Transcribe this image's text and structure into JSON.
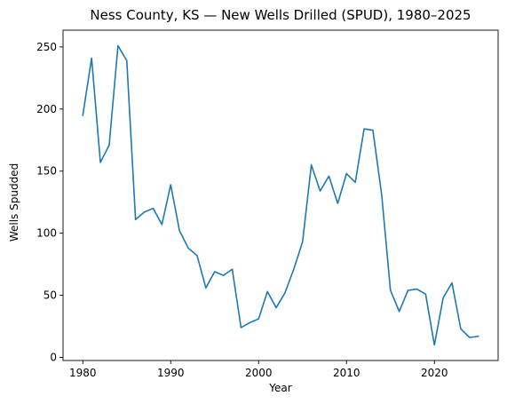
{
  "chart_data": {
    "type": "line",
    "title": "Ness County, KS — New Wells Drilled (SPUD), 1980–2025",
    "xlabel": "Year",
    "ylabel": "Wells Spudded",
    "xlim": [
      1977.75,
      2027.25
    ],
    "ylim": [
      -2.5,
      263.5
    ],
    "xticks": [
      1980,
      1990,
      2000,
      2010,
      2020
    ],
    "yticks": [
      0,
      50,
      100,
      150,
      200,
      250
    ],
    "grid": false,
    "line_color": "#1f77b4",
    "series": [
      {
        "x": [
          1980,
          1981,
          1982,
          1983,
          1984,
          1985,
          1986,
          1987,
          1988,
          1989,
          1990,
          1991,
          1992,
          1993,
          1994,
          1995,
          1996,
          1997,
          1998,
          1999,
          2000,
          2001,
          2002,
          2003,
          2004,
          2005,
          2006,
          2007,
          2008,
          2009,
          2010,
          2011,
          2012,
          2013,
          2014,
          2015,
          2016,
          2017,
          2018,
          2019,
          2020,
          2021,
          2022,
          2023,
          2024,
          2025
        ],
        "values": [
          195,
          241,
          157,
          171,
          251,
          239,
          111,
          117,
          120,
          107,
          139,
          102,
          88,
          82,
          56,
          69,
          66,
          71,
          24,
          28,
          31,
          53,
          40,
          52,
          71,
          93,
          155,
          134,
          146,
          124,
          148,
          141,
          184,
          183,
          131,
          54,
          37,
          54,
          55,
          51,
          10,
          48,
          60,
          23,
          16,
          17
        ]
      }
    ]
  }
}
